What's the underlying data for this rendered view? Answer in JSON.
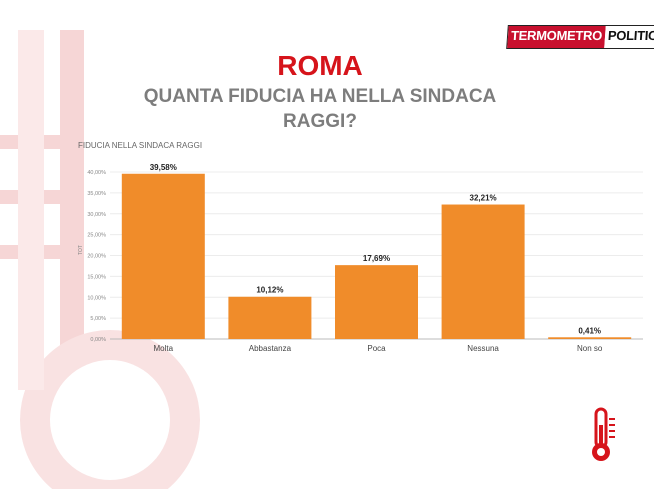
{
  "logo": {
    "part1": "TERMOMETRO",
    "part2": "POLITICO"
  },
  "header": {
    "title": "ROMA",
    "subtitle": "QUANTA FIDUCIA HA NELLA SINDACA RAGGI?"
  },
  "icons": {
    "logo": "termometro-politico-logo",
    "thermometer": "thermometer-icon"
  },
  "colors": {
    "bar": "#f08c2a",
    "title": "#d6141b",
    "subtitle": "#7d7d7d",
    "background_art": "#f7dcdc"
  },
  "chart_data": {
    "type": "bar",
    "title": "FIDUCIA NELLA SINDACA RAGGI",
    "ylabel": "TOT",
    "categories": [
      "Molta",
      "Abbastanza",
      "Poca",
      "Nessuna",
      "Non so"
    ],
    "values": [
      39.58,
      10.12,
      17.69,
      32.21,
      0.41
    ],
    "data_labels": [
      "39,58%",
      "10,12%",
      "17,69%",
      "32,21%",
      "0,41%"
    ],
    "yticks": [
      "0,00%",
      "5,00%",
      "10,00%",
      "15,00%",
      "20,00%",
      "25,00%",
      "30,00%",
      "35,00%",
      "40,00%"
    ],
    "ylim": [
      0,
      40
    ],
    "grid": true
  }
}
